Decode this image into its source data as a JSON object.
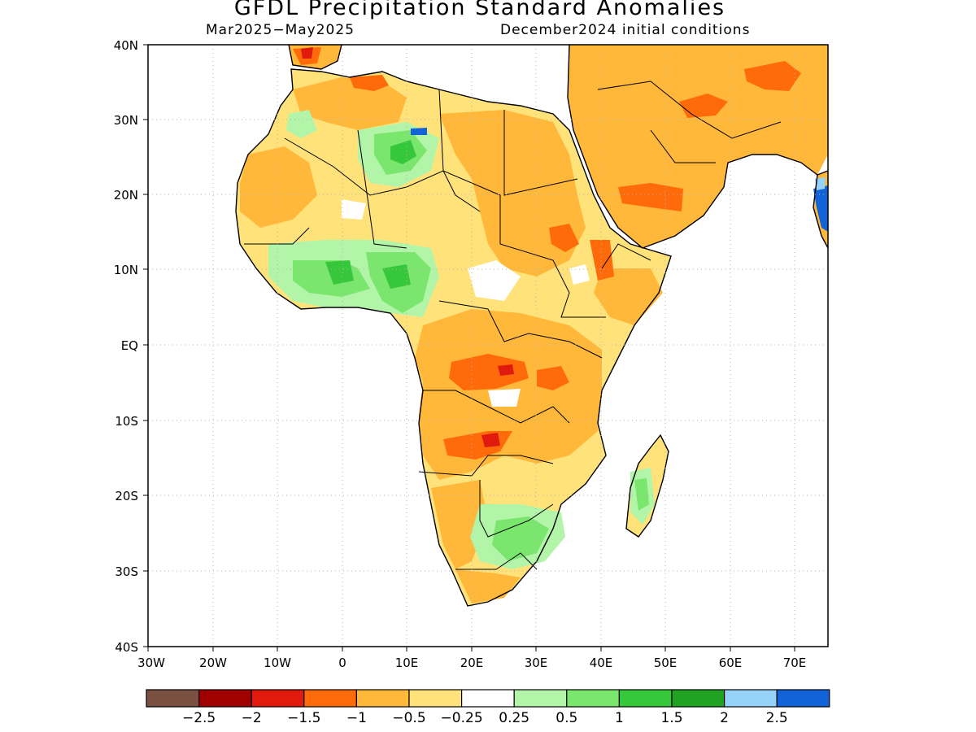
{
  "title": "GFDL Precipitation Standard Anomalies",
  "period": "Mar2025−May2025",
  "init": "December2024 initial conditions",
  "lat_labels": [
    "40N",
    "30N",
    "20N",
    "10N",
    "EQ",
    "10S",
    "20S",
    "30S",
    "40S"
  ],
  "lon_labels": [
    "30W",
    "20W",
    "10W",
    "0",
    "10E",
    "20E",
    "30E",
    "40E",
    "50E",
    "60E",
    "70E"
  ],
  "colorbar": {
    "colors": [
      "#7a5042",
      "#a00000",
      "#e01a0d",
      "#ff6a0a",
      "#ffb83a",
      "#ffe27a",
      "#ffffff",
      "#b3f5a8",
      "#7ae66e",
      "#36c83a",
      "#1fa321",
      "#96d3fa",
      "#1263d8"
    ],
    "labels": [
      "−2.5",
      "−2",
      "−1.5",
      "−1",
      "−0.5",
      "−0.25",
      "0.25",
      "0.5",
      "1",
      "1.5",
      "2",
      "2.5"
    ]
  },
  "map_colors": {
    "orange_light": "#ffb83a",
    "yellow": "#ffe27a",
    "orange": "#ff6a0a",
    "red": "#e01a0d",
    "green_light": "#b3f5a8",
    "green": "#7ae66e",
    "green_dark": "#36c83a",
    "blue": "#1263d8"
  }
}
